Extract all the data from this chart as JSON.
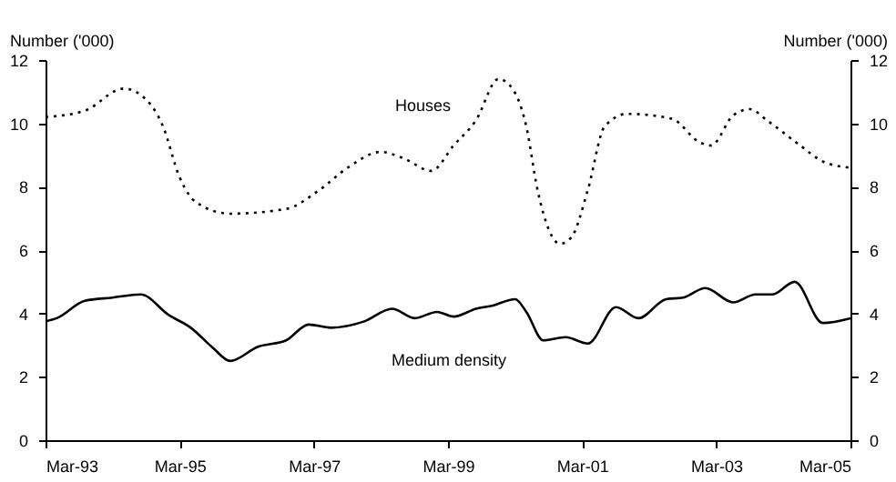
{
  "chart_data": {
    "type": "line",
    "ylabel": "Number ('000)",
    "y2label": "Number ('000)",
    "xlim": [
      "1993-03",
      "2005-03"
    ],
    "xticks": [
      {
        "value": "1993-03",
        "label": "Mar-93"
      },
      {
        "value": "1995-03",
        "label": "Mar-95"
      },
      {
        "value": "1997-03",
        "label": "Mar-97"
      },
      {
        "value": "1999-03",
        "label": "Mar-99"
      },
      {
        "value": "2001-03",
        "label": "Mar-01"
      },
      {
        "value": "2003-03",
        "label": "Mar-03"
      },
      {
        "value": "2005-03",
        "label": "Mar-05"
      }
    ],
    "ylim": [
      0,
      12
    ],
    "yticks": [
      0,
      2,
      4,
      6,
      8,
      10,
      12
    ],
    "y2lim": [
      0,
      12
    ],
    "y2ticks": [
      0,
      2,
      4,
      6,
      8,
      10,
      12
    ],
    "grid": false,
    "marker": "none",
    "series": [
      {
        "name": "Houses",
        "color": "#000000",
        "line_style": "dotted",
        "x": [
          "1993-03",
          "1993-10",
          "1994-05",
          "1994-08",
          "1994-12",
          "1995-03",
          "1995-06",
          "1995-12",
          "1996-10",
          "1997-04",
          "1997-09",
          "1998-03",
          "1998-07",
          "1998-12",
          "1999-04",
          "1999-08",
          "1999-12",
          "2000-02",
          "2000-05",
          "2000-07",
          "2000-11",
          "2001-01",
          "2001-04",
          "2001-07",
          "2001-11",
          "2002-07",
          "2002-12",
          "2003-02",
          "2003-06",
          "2003-09",
          "2003-12",
          "2004-06",
          "2004-10",
          "2005-03"
        ],
        "values": [
          10.2,
          10.4,
          11.1,
          10.9,
          9.9,
          8.3,
          7.5,
          7.15,
          7.3,
          7.9,
          8.6,
          9.1,
          8.9,
          8.5,
          9.3,
          10.1,
          11.4,
          11.2,
          9.9,
          7.9,
          6.2,
          6.4,
          7.9,
          9.9,
          10.3,
          10.15,
          9.4,
          9.3,
          10.25,
          10.45,
          10.1,
          9.3,
          8.8,
          8.6
        ]
      },
      {
        "name": "Medium density",
        "color": "#000000",
        "line_style": "solid",
        "x": [
          "1993-03",
          "1993-05",
          "1993-10",
          "1994-03",
          "1994-08",
          "1995-01",
          "1995-05",
          "1995-09",
          "1995-12",
          "1996-05",
          "1996-10",
          "1997-02",
          "1997-06",
          "1997-12",
          "1998-05",
          "1998-09",
          "1999-01",
          "1999-04",
          "1999-08",
          "1999-11",
          "2000-03",
          "2000-05",
          "2000-08",
          "2000-12",
          "2001-04",
          "2001-09",
          "2002-01",
          "2002-06",
          "2002-09",
          "2003-01",
          "2003-06",
          "2003-10",
          "2004-01",
          "2004-05",
          "2004-10",
          "2005-03"
        ],
        "values": [
          3.75,
          3.85,
          4.4,
          4.5,
          4.6,
          3.95,
          3.55,
          2.9,
          2.5,
          2.95,
          3.15,
          3.65,
          3.55,
          3.75,
          4.15,
          3.85,
          4.05,
          3.9,
          4.15,
          4.25,
          4.45,
          4.05,
          3.15,
          3.25,
          3.05,
          4.2,
          3.85,
          4.45,
          4.5,
          4.8,
          4.35,
          4.6,
          4.6,
          5.0,
          3.7,
          3.85
        ]
      }
    ]
  }
}
